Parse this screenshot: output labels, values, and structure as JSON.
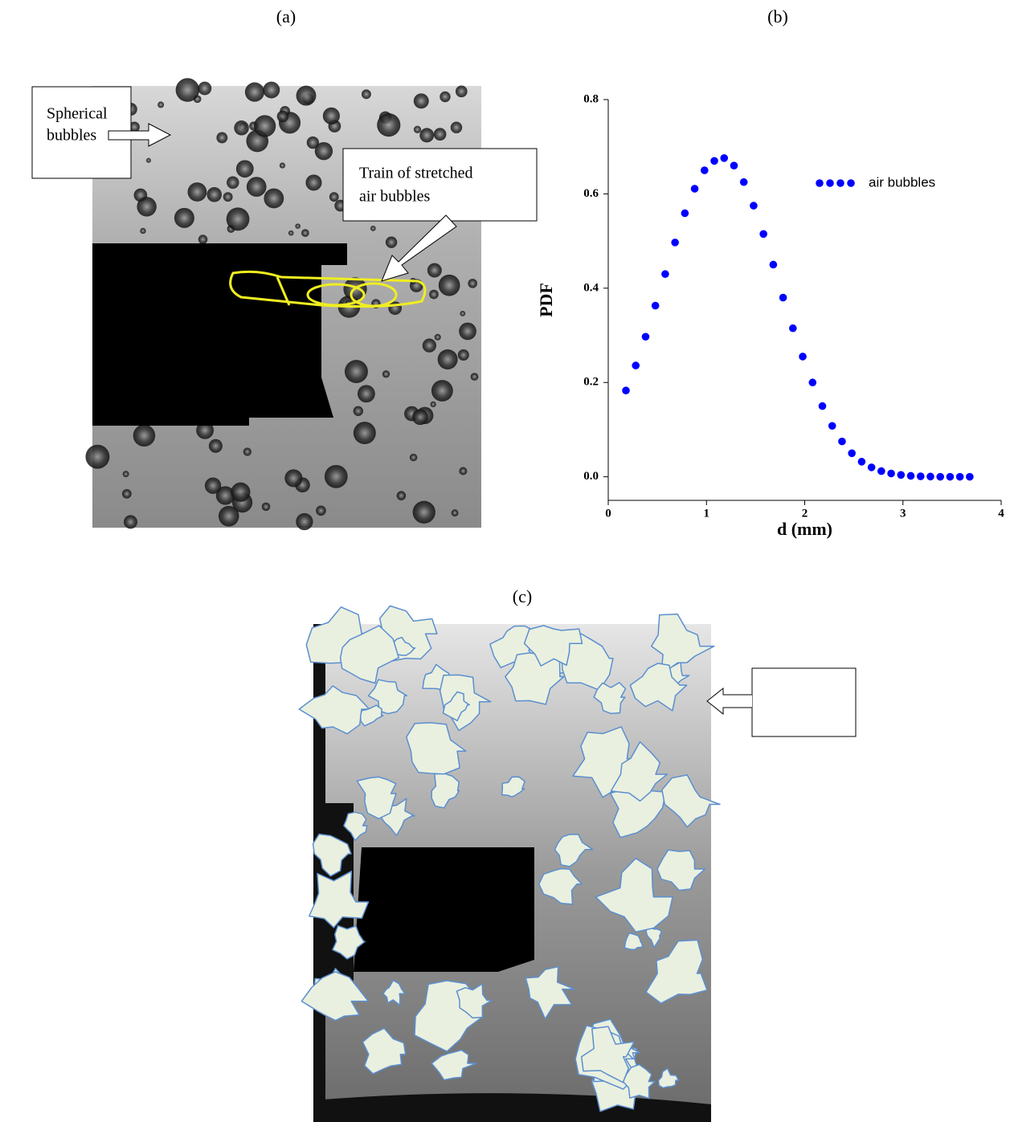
{
  "panel_labels": [
    "(a)",
    "(b)",
    "(c)"
  ],
  "annotations": {
    "spherical": [
      "Spherical",
      "bubbles"
    ],
    "train": [
      "Train of stretched",
      "air bubbles"
    ]
  },
  "chart_data": {
    "type": "scatter",
    "x_label": "d  (mm)",
    "y_label": "PDF",
    "series": [
      {
        "name": "air bubbles",
        "color": "#0000ff",
        "x": [
          0.18,
          0.28,
          0.38,
          0.48,
          0.58,
          0.68,
          0.78,
          0.88,
          0.98,
          1.08,
          1.18,
          1.28,
          1.38,
          1.48,
          1.58,
          1.68,
          1.78,
          1.88,
          1.98,
          2.08,
          2.18,
          2.28,
          2.38,
          2.48,
          2.58,
          2.68,
          2.78,
          2.88,
          2.98,
          3.08,
          3.18,
          3.28,
          3.38,
          3.48,
          3.58,
          3.68
        ],
        "values": [
          0.183,
          0.236,
          0.297,
          0.363,
          0.43,
          0.497,
          0.559,
          0.611,
          0.65,
          0.67,
          0.676,
          0.66,
          0.625,
          0.575,
          0.515,
          0.45,
          0.38,
          0.315,
          0.255,
          0.2,
          0.15,
          0.108,
          0.075,
          0.05,
          0.032,
          0.02,
          0.012,
          0.007,
          0.004,
          0.002,
          0.001,
          0.0005,
          0,
          0,
          0,
          0
        ]
      }
    ],
    "xlim": [
      0,
      4
    ],
    "xticks": [
      0,
      1,
      2,
      3,
      4
    ],
    "ylim": [
      -0.05,
      0.8
    ],
    "yticks": [
      {
        "value": 0,
        "label": "0.0"
      },
      0.2,
      0.4,
      0.6,
      0.8
    ],
    "legend": "upper-right",
    "grid": false
  }
}
